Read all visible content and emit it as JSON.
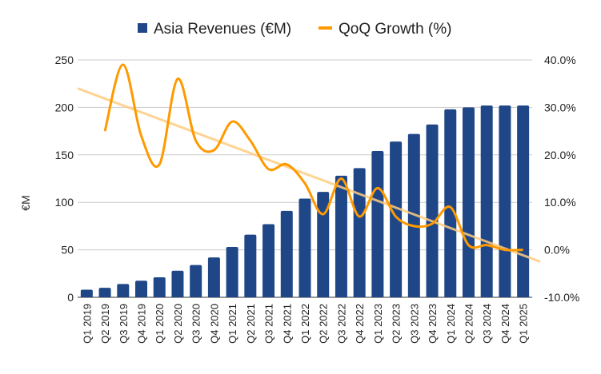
{
  "chart_data": {
    "type": "bar+line",
    "categories": [
      "Q1 2019",
      "Q2 2019",
      "Q3 2019",
      "Q4 2019",
      "Q1 2020",
      "Q2 2020",
      "Q3 2020",
      "Q4 2020",
      "Q1 2021",
      "Q2 2021",
      "Q3 2021",
      "Q4 2021",
      "Q1 2022",
      "Q2 2022",
      "Q3 2022",
      "Q4 2022",
      "Q1 2023",
      "Q2 2023",
      "Q3 2023",
      "Q4 2023",
      "Q1 2024",
      "Q2 2024",
      "Q3 2024",
      "Q4 2024",
      "Q1 2025"
    ],
    "series": [
      {
        "name": "Asia Revenues (€M)",
        "type": "bar",
        "axis": "left",
        "color": "#1f4788",
        "values": [
          8,
          10,
          14,
          17.5,
          21,
          28,
          34,
          42,
          53,
          66,
          77,
          91,
          104,
          111,
          128,
          136,
          154,
          164,
          172,
          182,
          198,
          200,
          202,
          202,
          202
        ]
      },
      {
        "name": "QoQ Growth (%)",
        "type": "line",
        "smooth": true,
        "axis": "right",
        "color": "#ff9900",
        "values": [
          null,
          25,
          39,
          24,
          18,
          36,
          23,
          21,
          27,
          23,
          17,
          18,
          14,
          7.5,
          15,
          7,
          13,
          7,
          5,
          5.5,
          9,
          1,
          1,
          0,
          0
        ]
      }
    ],
    "trendline": {
      "series": "QoQ Growth (%)",
      "type": "linear",
      "color": "#ffcc80",
      "start": 34,
      "end": -2.5
    },
    "ylabel": "€M",
    "ylim": [
      0,
      250
    ],
    "yticks": [
      "0",
      "50",
      "100",
      "150",
      "200",
      "250"
    ],
    "y2lim": [
      -10,
      40
    ],
    "y2ticks": [
      "-10.0%",
      "0.0%",
      "10.0%",
      "20.0%",
      "30.0%",
      "40.0%"
    ],
    "grid": true,
    "legend": "top"
  }
}
